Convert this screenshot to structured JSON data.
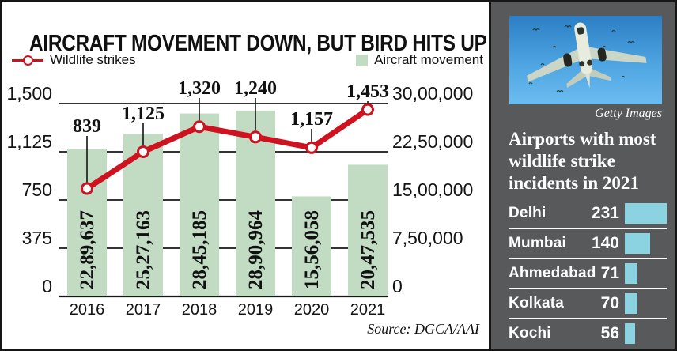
{
  "title": "AIRCRAFT MOVEMENT DOWN, BUT BIRD HITS UP",
  "legend": {
    "wildlife_label": "Wildlife strikes",
    "aircraft_label": "Aircraft movement"
  },
  "source": "Source: DGCA/AAI",
  "colors": {
    "red": "#ce1220",
    "green": "#c2dcc4",
    "blue": "#8cd3e2",
    "sidebar_bg": "#58595b",
    "ink": "#161616"
  },
  "chart_data": {
    "type": "bar+line",
    "categories": [
      "2016",
      "2017",
      "2018",
      "2019",
      "2020",
      "2021"
    ],
    "series": [
      {
        "name": "Aircraft movement",
        "type": "bar",
        "axis": "right",
        "values": [
          2289637,
          2527163,
          2845185,
          2890964,
          1556058,
          2047535
        ],
        "labels": [
          "22,89,637",
          "25,27,163",
          "28,45,185",
          "28,90,964",
          "15,56,058",
          "20,47,535"
        ]
      },
      {
        "name": "Wildlife strikes",
        "type": "line",
        "axis": "left",
        "values": [
          839,
          1125,
          1320,
          1240,
          1157,
          1453
        ],
        "labels": [
          "839",
          "1,125",
          "1,320",
          "1,240",
          "1,157",
          "1,453"
        ]
      }
    ],
    "left_axis": {
      "max": 1500,
      "ticks": [
        1500,
        1125,
        750,
        375,
        0
      ],
      "labels": [
        "1,500",
        "1,125",
        "750",
        "375",
        "0"
      ]
    },
    "right_axis": {
      "max": 3000000,
      "ticks": [
        3000000,
        2250000,
        1500000,
        750000,
        0
      ],
      "labels": [
        "30,00,000",
        "22,50,000",
        "15,00,000",
        "7,50,000",
        "0"
      ]
    },
    "grid": true,
    "legend_position": "top"
  },
  "sidebar": {
    "credit": "Getty Images",
    "heading": "Airports with most\nwildlife strike\nincidents in 2021",
    "airports": [
      {
        "name": "Delhi",
        "value": 231
      },
      {
        "name": "Mumbai",
        "value": 140
      },
      {
        "name": "Ahmedabad",
        "value": 71
      },
      {
        "name": "Kolkata",
        "value": 70
      },
      {
        "name": "Kochi",
        "value": 56
      }
    ]
  }
}
